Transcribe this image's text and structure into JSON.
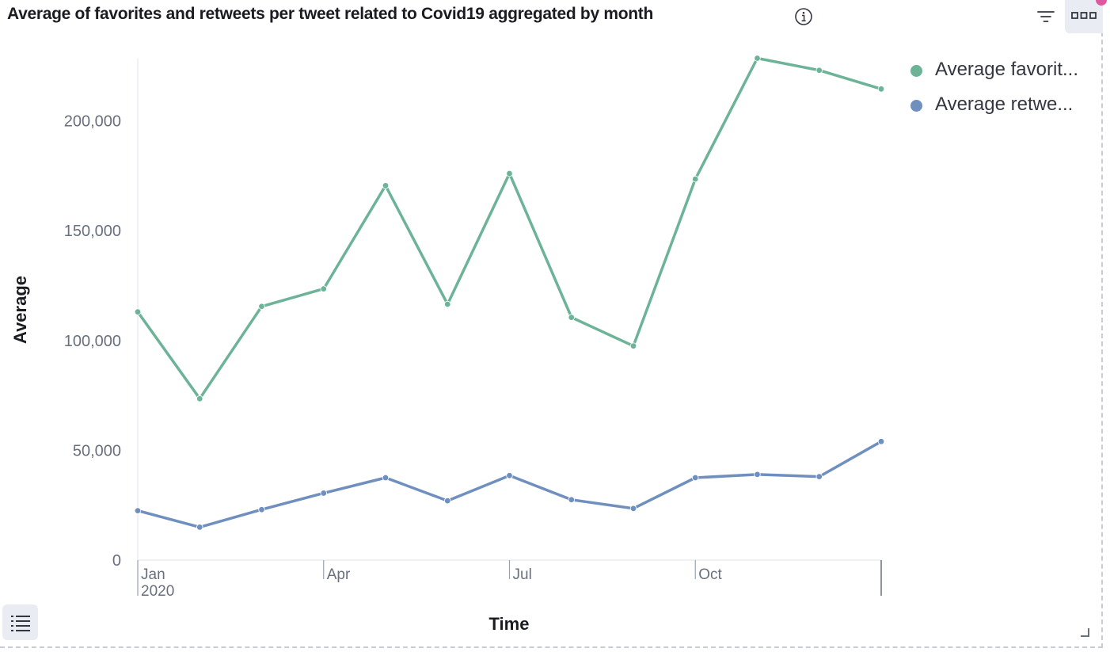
{
  "panel": {
    "title": "Average of favorites and retweets per tweet related to Covid19 aggregated by month",
    "info_icon": "info-circle-icon",
    "filter_icon": "filter-icon",
    "menu_icon": "boxes-horizontal-icon",
    "legend_toggle_icon": "list-icon",
    "resize_icon": "resize-corner-icon"
  },
  "legend": {
    "items": [
      {
        "label": "Average favorit...",
        "color": "#6db397"
      },
      {
        "label": "Average retwe...",
        "color": "#6f8fbf"
      }
    ]
  },
  "chart_data": {
    "type": "line",
    "xlabel": "Time",
    "ylabel": "Average",
    "x": [
      "2020-01",
      "2020-02",
      "2020-03",
      "2020-04",
      "2020-05",
      "2020-06",
      "2020-07",
      "2020-08",
      "2020-09",
      "2020-10",
      "2020-11",
      "2020-12",
      "2021-01"
    ],
    "x_ticks": [
      {
        "label": "Jan",
        "sublabel": "2020",
        "index": 0
      },
      {
        "label": "Apr",
        "sublabel": "",
        "index": 3
      },
      {
        "label": "Jul",
        "sublabel": "",
        "index": 6
      },
      {
        "label": "Oct",
        "sublabel": "",
        "index": 9
      }
    ],
    "y_ticks": [
      0,
      50000,
      100000,
      150000,
      200000
    ],
    "y_tick_labels": [
      "0",
      "50,000",
      "100,000",
      "150,000",
      "200,000"
    ],
    "ylim": [
      0,
      229000
    ],
    "grid": false,
    "legend_position": "right",
    "series": [
      {
        "name": "Average favorit...",
        "color": "#6db397",
        "values": [
          113000,
          73500,
          115500,
          123500,
          170500,
          116500,
          176000,
          110500,
          97500,
          173500,
          228500,
          223000,
          214500
        ]
      },
      {
        "name": "Average retwe...",
        "color": "#6f8fbf",
        "values": [
          22500,
          15000,
          23000,
          30500,
          37500,
          27000,
          38500,
          27500,
          23500,
          37500,
          39000,
          38000,
          54000
        ]
      }
    ]
  }
}
